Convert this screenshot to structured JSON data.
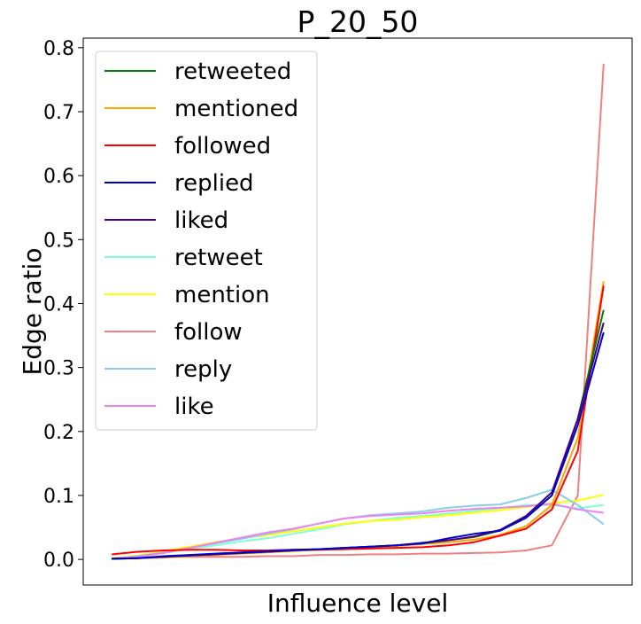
{
  "chart_data": {
    "type": "line",
    "title": "P_20_50",
    "xlabel": "Influence level",
    "ylabel": "Edge ratio",
    "ylim": [
      -0.04,
      0.815
    ],
    "yticks": [
      0.0,
      0.1,
      0.2,
      0.3,
      0.4,
      0.5,
      0.6,
      0.7,
      0.8
    ],
    "ytick_labels": [
      "0.0",
      "0.1",
      "0.2",
      "0.3",
      "0.4",
      "0.5",
      "0.6",
      "0.7",
      "0.8"
    ],
    "x_tick_labels_visible": false,
    "xlim": [
      -1.1,
      20.1
    ],
    "legend_position": "upper-left",
    "grid": false,
    "x": [
      0,
      1,
      2,
      3,
      4,
      5,
      6,
      7,
      8,
      9,
      10,
      11,
      12,
      13,
      14,
      15,
      16,
      17,
      18,
      19
    ],
    "series": [
      {
        "name": "retweeted",
        "color": "#008000",
        "values": [
          0.001,
          0.002,
          0.004,
          0.006,
          0.008,
          0.01,
          0.012,
          0.014,
          0.016,
          0.018,
          0.02,
          0.022,
          0.025,
          0.03,
          0.035,
          0.045,
          0.065,
          0.1,
          0.22,
          0.39
        ]
      },
      {
        "name": "mentioned",
        "color": "#FFA500",
        "values": [
          0.001,
          0.002,
          0.003,
          0.005,
          0.007,
          0.009,
          0.011,
          0.013,
          0.015,
          0.017,
          0.019,
          0.021,
          0.024,
          0.027,
          0.031,
          0.038,
          0.052,
          0.085,
          0.19,
          0.435
        ]
      },
      {
        "name": "followed",
        "color": "#FF0000",
        "values": [
          0.008,
          0.012,
          0.014,
          0.015,
          0.015,
          0.014,
          0.014,
          0.015,
          0.015,
          0.016,
          0.017,
          0.018,
          0.019,
          0.022,
          0.027,
          0.037,
          0.048,
          0.078,
          0.17,
          0.428
        ]
      },
      {
        "name": "replied",
        "color": "#0000CD",
        "values": [
          0.001,
          0.002,
          0.005,
          0.007,
          0.009,
          0.011,
          0.013,
          0.015,
          0.016,
          0.018,
          0.02,
          0.022,
          0.025,
          0.033,
          0.04,
          0.045,
          0.065,
          0.1,
          0.21,
          0.355
        ]
      },
      {
        "name": "liked",
        "color": "#4B0082",
        "values": [
          0.001,
          0.002,
          0.004,
          0.006,
          0.008,
          0.01,
          0.012,
          0.014,
          0.016,
          0.018,
          0.02,
          0.022,
          0.026,
          0.03,
          0.036,
          0.046,
          0.068,
          0.105,
          0.22,
          0.37
        ]
      },
      {
        "name": "retweet",
        "color": "#7FFFD4",
        "values": [
          0.001,
          0.004,
          0.01,
          0.016,
          0.022,
          0.028,
          0.033,
          0.04,
          0.047,
          0.055,
          0.06,
          0.065,
          0.068,
          0.072,
          0.076,
          0.08,
          0.085,
          0.085,
          0.08,
          0.085
        ]
      },
      {
        "name": "mention",
        "color": "#FFFF00",
        "values": [
          0.002,
          0.006,
          0.013,
          0.02,
          0.027,
          0.033,
          0.038,
          0.044,
          0.05,
          0.056,
          0.06,
          0.062,
          0.066,
          0.069,
          0.073,
          0.077,
          0.082,
          0.088,
          0.092,
          0.101
        ]
      },
      {
        "name": "follow",
        "color": "#F08080",
        "values": [
          0.001,
          0.003,
          0.004,
          0.004,
          0.004,
          0.004,
          0.005,
          0.005,
          0.007,
          0.007,
          0.008,
          0.008,
          0.009,
          0.009,
          0.01,
          0.011,
          0.014,
          0.022,
          0.1,
          0.775
        ]
      },
      {
        "name": "reply",
        "color": "#87CEEB",
        "values": [
          0.001,
          0.005,
          0.011,
          0.018,
          0.025,
          0.032,
          0.04,
          0.047,
          0.056,
          0.064,
          0.069,
          0.072,
          0.075,
          0.081,
          0.084,
          0.086,
          0.096,
          0.109,
          0.085,
          0.055
        ]
      },
      {
        "name": "like",
        "color": "#EE82EE",
        "values": [
          0.001,
          0.004,
          0.01,
          0.018,
          0.026,
          0.034,
          0.042,
          0.048,
          0.056,
          0.064,
          0.068,
          0.07,
          0.072,
          0.076,
          0.079,
          0.081,
          0.083,
          0.087,
          0.078,
          0.073
        ]
      }
    ]
  }
}
